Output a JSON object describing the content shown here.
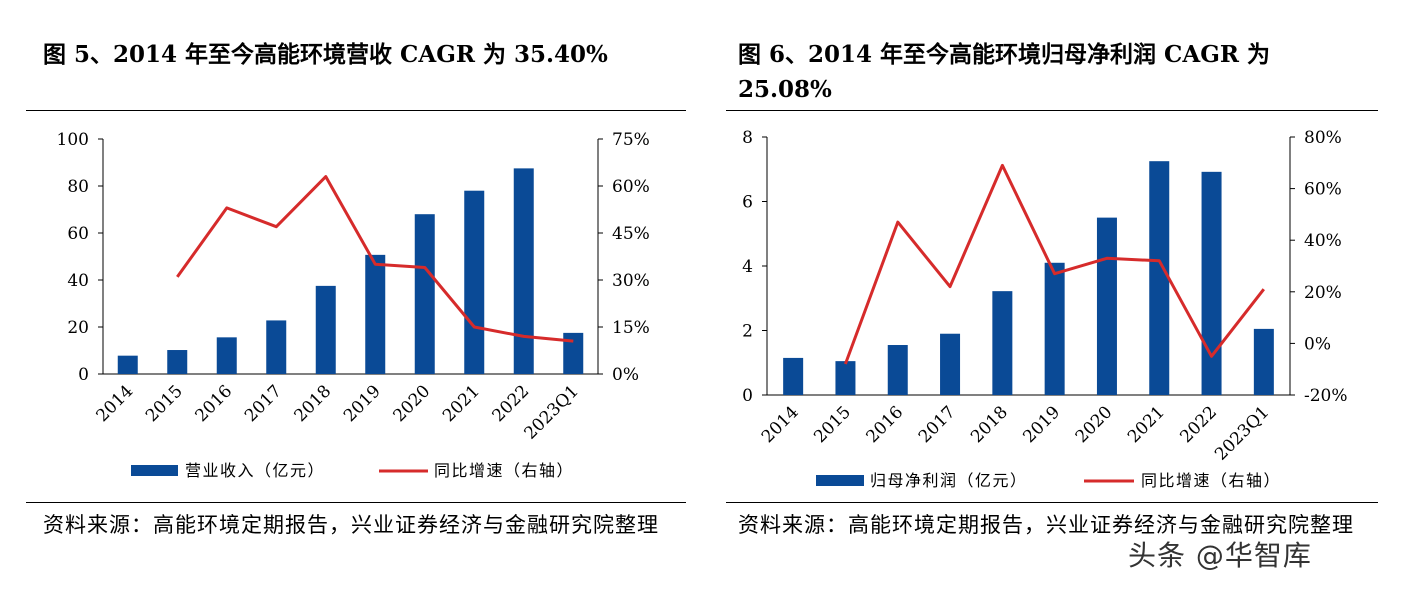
{
  "panels": [
    {
      "title": "图 5、2014 年至今高能环境营收 CAGR 为 35.40%",
      "source": "资料来源：高能环境定期报告，兴业证券经济与金融研究院整理"
    },
    {
      "title": "图 6、2014 年至今高能环境归母净利润 CAGR 为 25.08%",
      "source": "资料来源：高能环境定期报告，兴业证券经济与金融研究院整理"
    }
  ],
  "watermark": "头条 @华智库",
  "colors": {
    "bar": "#0a4a96",
    "line": "#d62b2b"
  },
  "chart_data": [
    {
      "type": "bar",
      "categories": [
        "2014",
        "2015",
        "2016",
        "2017",
        "2018",
        "2019",
        "2020",
        "2021",
        "2022",
        "2023Q1"
      ],
      "series": [
        {
          "name": "营业收入（亿元）",
          "type": "bar",
          "axis": "left",
          "values": [
            7.8,
            10.2,
            15.6,
            22.8,
            37.5,
            50.7,
            68.0,
            78.0,
            87.5,
            17.5
          ]
        },
        {
          "name": "同比增速（右轴）",
          "type": "line",
          "axis": "right",
          "values": [
            null,
            31.0,
            53.0,
            47.0,
            63.0,
            35.0,
            34.0,
            15.0,
            12.0,
            10.5
          ]
        }
      ],
      "yleft": {
        "lim": [
          0,
          100
        ],
        "ticks": [
          "0",
          "20",
          "40",
          "60",
          "80",
          "100"
        ]
      },
      "yright": {
        "lim": [
          0,
          75
        ],
        "ticks": [
          "0%",
          "15%",
          "30%",
          "45%",
          "60%",
          "75%"
        ]
      },
      "legend_position": "bottom"
    },
    {
      "type": "bar",
      "categories": [
        "2014",
        "2015",
        "2016",
        "2017",
        "2018",
        "2019",
        "2020",
        "2021",
        "2022",
        "2023Q1"
      ],
      "series": [
        {
          "name": "归母净利润（亿元）",
          "type": "bar",
          "axis": "left",
          "values": [
            1.15,
            1.05,
            1.55,
            1.9,
            3.22,
            4.1,
            5.5,
            7.25,
            6.92,
            2.05
          ]
        },
        {
          "name": "同比增速（右轴）",
          "type": "line",
          "axis": "right",
          "values": [
            null,
            -8.0,
            47.0,
            22.0,
            69.0,
            27.0,
            33.0,
            32.0,
            -5.0,
            21.0
          ]
        }
      ],
      "yleft": {
        "lim": [
          0,
          8
        ],
        "ticks": [
          "0",
          "2",
          "4",
          "6",
          "8"
        ]
      },
      "yright": {
        "lim": [
          -20,
          80
        ],
        "ticks": [
          "-20%",
          "0%",
          "20%",
          "40%",
          "60%",
          "80%"
        ]
      },
      "legend_position": "bottom"
    }
  ]
}
